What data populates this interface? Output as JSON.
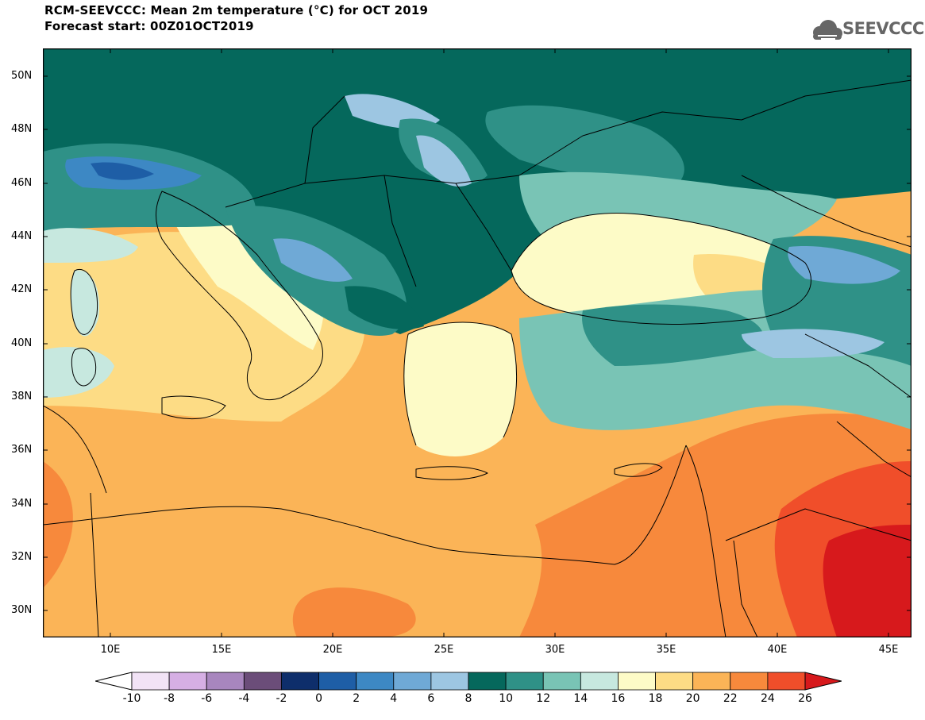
{
  "title": "RCM-SEEVCCC: Mean 2m temperature (°C) for OCT 2019",
  "subtitle": "Forecast start: 00Z01OCT2019",
  "logo": {
    "text": "SEEVCCC",
    "icon": "cloud-icon",
    "color": "#666666"
  },
  "map": {
    "region": "South-East Europe / Eastern Mediterranean",
    "lat_labels": [
      "50N",
      "48N",
      "46N",
      "44N",
      "42N",
      "40N",
      "38N",
      "36N",
      "34N",
      "32N",
      "30N"
    ],
    "lon_labels": [
      "10E",
      "15E",
      "20E",
      "25E",
      "30E",
      "35E",
      "40E",
      "45E"
    ],
    "extent": {
      "lon": [
        7,
        46
      ],
      "lat": [
        29,
        51
      ]
    }
  },
  "colorbar": {
    "labels": [
      "-10",
      "-8",
      "-6",
      "-4",
      "-2",
      "0",
      "2",
      "4",
      "6",
      "8",
      "10",
      "12",
      "14",
      "16",
      "18",
      "20",
      "22",
      "24",
      "26"
    ],
    "under_color": "#ffffff",
    "over_color": "#d7191c",
    "colors": [
      "#f2e3f6",
      "#d6afe4",
      "#a886be",
      "#6b4d79",
      "#0e2e6b",
      "#1e5ea6",
      "#3d88c4",
      "#6fa9d6",
      "#9dc6e2",
      "#05685c",
      "#2f9187",
      "#79c4b5",
      "#c7e8df",
      "#fdfbc7",
      "#fddc85",
      "#fbb457",
      "#f7893c",
      "#f04e2a"
    ]
  }
}
